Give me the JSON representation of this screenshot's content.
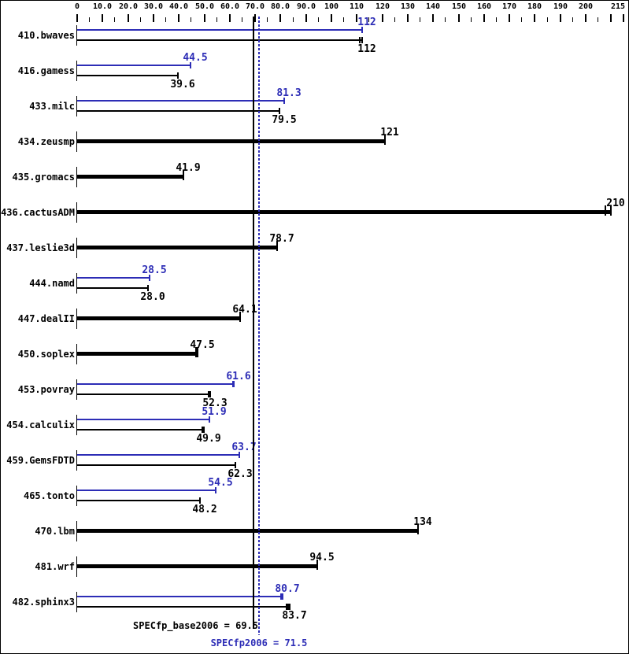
{
  "colors": {
    "peak_blue": "#2d2db6",
    "base_black": "#000000",
    "background": "#ffffff"
  },
  "chart_data": {
    "type": "bar",
    "orientation": "horizontal",
    "axis": {
      "min": 0,
      "max": 215,
      "minor_tick_step": 5,
      "major_tick_step": 10,
      "tick_label_values": [
        0,
        10,
        20,
        30,
        40,
        50,
        60,
        70,
        80,
        90,
        100,
        110,
        120,
        130,
        140,
        150,
        160,
        170,
        180,
        190,
        200,
        215
      ],
      "tick_labels": [
        "0",
        "10.0",
        "20.0",
        "30.0",
        "40.0",
        "50.0",
        "60.0",
        "70.0",
        "80.0",
        "90.0",
        "100",
        "110",
        "120",
        "130",
        "140",
        "150",
        "160",
        "170",
        "180",
        "190",
        "200",
        "215"
      ]
    },
    "series_legend": {
      "peak": "SPECfp2006 (blue, label above bar)",
      "base": "SPECfp_base2006 (black, label below bar; bold bar when base only)"
    },
    "benchmarks": [
      {
        "name": "410.bwaves",
        "peak": {
          "value": 112,
          "label": "112",
          "runs": [
            112
          ]
        },
        "base": {
          "value": 112,
          "label": "112",
          "runs": [
            112,
            111.1
          ]
        }
      },
      {
        "name": "416.gamess",
        "peak": {
          "value": 44.5,
          "label": "44.5",
          "runs": [
            44.5
          ]
        },
        "base": {
          "value": 39.6,
          "label": "39.6",
          "runs": [
            39.6
          ]
        }
      },
      {
        "name": "433.milc",
        "peak": {
          "value": 81.3,
          "label": "81.3",
          "runs": [
            81.3
          ]
        },
        "base": {
          "value": 79.5,
          "label": "79.5",
          "runs": [
            79.5
          ]
        }
      },
      {
        "name": "434.zeusmp",
        "peak": null,
        "base": {
          "value": 121,
          "label": "121",
          "runs": [
            121
          ]
        }
      },
      {
        "name": "435.gromacs",
        "peak": null,
        "base": {
          "value": 41.9,
          "label": "41.9",
          "runs": [
            41.9
          ]
        }
      },
      {
        "name": "436.cactusADM",
        "peak": null,
        "base": {
          "value": 210,
          "label": "210",
          "runs": [
            210,
            207.6
          ]
        }
      },
      {
        "name": "437.leslie3d",
        "peak": null,
        "base": {
          "value": 78.7,
          "label": "78.7",
          "runs": [
            78.7
          ]
        }
      },
      {
        "name": "444.namd",
        "peak": {
          "value": 28.5,
          "label": "28.5",
          "runs": [
            28.5
          ]
        },
        "base": {
          "value": 28.0,
          "label": "28.0",
          "runs": [
            28.0
          ]
        }
      },
      {
        "name": "447.dealII",
        "peak": null,
        "base": {
          "value": 64.1,
          "label": "64.1",
          "runs": [
            64.1
          ]
        }
      },
      {
        "name": "450.soplex",
        "peak": null,
        "base": {
          "value": 47.5,
          "label": "47.5",
          "runs": [
            47.5,
            46.9
          ]
        }
      },
      {
        "name": "453.povray",
        "peak": {
          "value": 61.6,
          "label": "61.6",
          "runs": [
            61.6,
            61.2
          ]
        },
        "base": {
          "value": 52.3,
          "label": "52.3",
          "runs": [
            52.3,
            51.8
          ]
        }
      },
      {
        "name": "454.calculix",
        "peak": {
          "value": 51.9,
          "label": "51.9",
          "runs": [
            51.9
          ]
        },
        "base": {
          "value": 49.9,
          "label": "49.9",
          "runs": [
            49.9,
            49.3
          ]
        }
      },
      {
        "name": "459.GemsFDTD",
        "peak": {
          "value": 63.7,
          "label": "63.7",
          "runs": [
            63.7
          ]
        },
        "base": {
          "value": 62.3,
          "label": "62.3",
          "runs": [
            62.3
          ]
        }
      },
      {
        "name": "465.tonto",
        "peak": {
          "value": 54.5,
          "label": "54.5",
          "runs": [
            54.5
          ]
        },
        "base": {
          "value": 48.2,
          "label": "48.2",
          "runs": [
            48.2
          ]
        }
      },
      {
        "name": "470.lbm",
        "peak": null,
        "base": {
          "value": 134,
          "label": "134",
          "runs": [
            134
          ]
        }
      },
      {
        "name": "481.wrf",
        "peak": null,
        "base": {
          "value": 94.5,
          "label": "94.5",
          "runs": [
            94.5
          ]
        }
      },
      {
        "name": "482.sphinx3",
        "peak": {
          "value": 80.7,
          "label": "80.7",
          "runs": [
            80.7,
            80.1
          ]
        },
        "base": {
          "value": 83.7,
          "label": "83.7",
          "runs": [
            83.7,
            83.0,
            82.4
          ]
        }
      }
    ],
    "reference_lines": [
      {
        "text": "SPECfp_base2006 = 69.5",
        "value": 69.5,
        "series": "base",
        "style": "solid"
      },
      {
        "text": "SPECfp2006 = 71.5",
        "value": 71.5,
        "series": "peak",
        "style": "dotted"
      }
    ]
  }
}
